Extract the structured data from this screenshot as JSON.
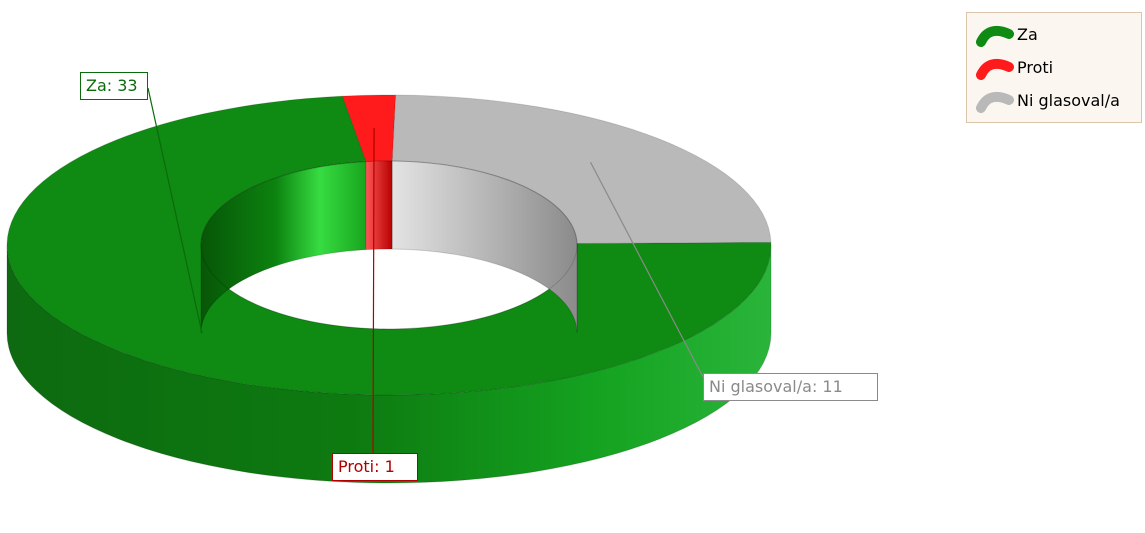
{
  "chart_data": {
    "type": "pie",
    "variant": "3d-donut",
    "title": "",
    "categories": [
      "Za",
      "Proti",
      "Ni glasoval/a"
    ],
    "series": [
      {
        "values": [
          33,
          1,
          11
        ]
      }
    ],
    "colors": [
      "#0f8a12",
      "#ff1b1b",
      "#b9b9b9"
    ],
    "legend": {
      "position": "top-right",
      "items": [
        {
          "label": "Za",
          "color": "#0f8a12",
          "icon": "green-arc-icon"
        },
        {
          "label": "Proti",
          "color": "#ff1b1b",
          "icon": "red-arc-icon"
        },
        {
          "label": "Ni glasoval/a",
          "color": "#b9b9b9",
          "icon": "gray-arc-icon"
        }
      ]
    },
    "data_labels": [
      "Za: 33",
      "Proti: 1",
      "Ni glasoval/a: 11"
    ],
    "grid": false
  }
}
